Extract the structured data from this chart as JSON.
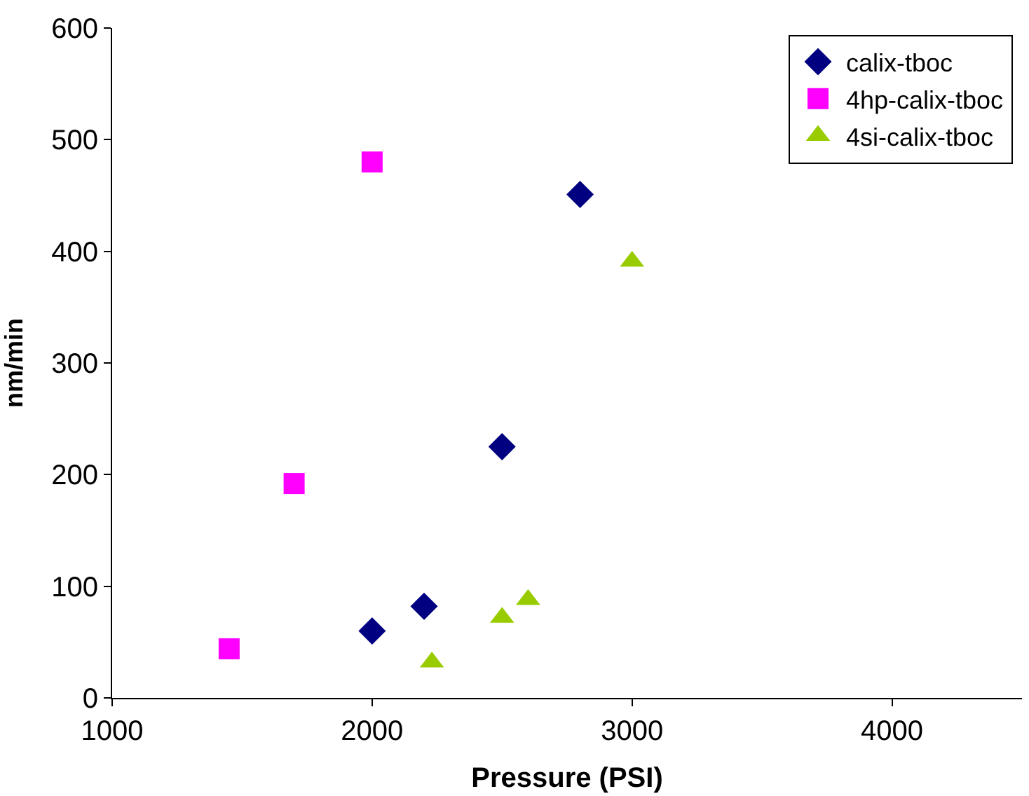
{
  "chart_data": {
    "type": "scatter",
    "xlabel": "Pressure (PSI)",
    "ylabel": "nm/min",
    "xlim": [
      1000,
      4500
    ],
    "xticks": [
      1000,
      2000,
      3000,
      4000
    ],
    "ylim": [
      0,
      600
    ],
    "yticks": [
      0,
      100,
      200,
      300,
      400,
      500,
      600
    ],
    "legend": "top right",
    "series": [
      {
        "name": "calix-tboc",
        "color": "#000080",
        "marker": "diamond",
        "x": [
          2000,
          2200,
          2500,
          2800
        ],
        "values": [
          60,
          82,
          225,
          451
        ]
      },
      {
        "name": "4hp-calix-tboc",
        "color": "#ff00ff",
        "marker": "square",
        "x": [
          1450,
          1700,
          2000
        ],
        "values": [
          44,
          192,
          480
        ]
      },
      {
        "name": "4si-calix-tboc",
        "color": "#99cc00",
        "marker": "triangle",
        "x": [
          2230,
          2500,
          2600,
          3000
        ],
        "values": [
          32,
          72,
          88,
          391
        ]
      }
    ]
  }
}
